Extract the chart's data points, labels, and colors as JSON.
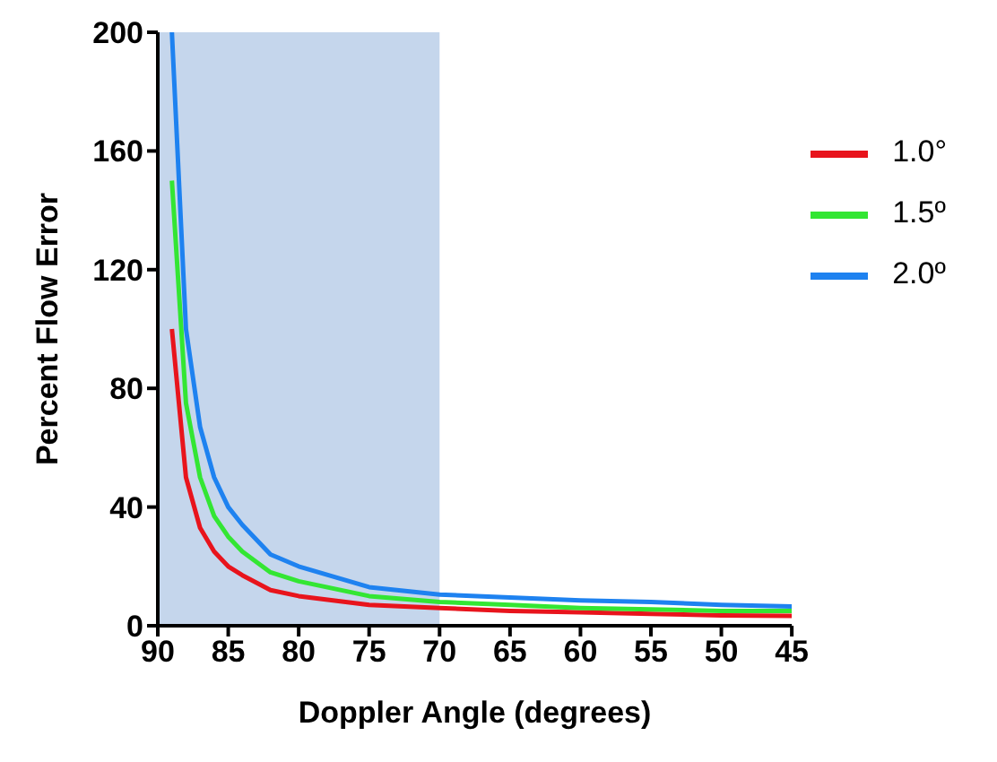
{
  "chart_data": {
    "type": "line",
    "xlabel": "Doppler Angle (degrees)",
    "ylabel": "Percent Flow Error",
    "x": [
      89,
      88,
      87,
      86,
      85,
      84,
      82,
      80,
      75,
      70,
      65,
      60,
      55,
      50,
      45
    ],
    "series": [
      {
        "name": "1.0°",
        "color": "#e8141c",
        "values": [
          100,
          50,
          33,
          25,
          20,
          17,
          12,
          10,
          7,
          6,
          5,
          4.5,
          4,
          3.5,
          3.3
        ]
      },
      {
        "name": "1.5º",
        "color": "#33e633",
        "values": [
          150,
          75,
          50,
          37,
          30,
          25,
          18,
          15,
          10,
          8,
          7,
          6,
          5.5,
          5,
          5
        ]
      },
      {
        "name": "2.0º",
        "color": "#1e82f0",
        "values": [
          200,
          100,
          67,
          50,
          40,
          34,
          24,
          20,
          13,
          10.5,
          9.5,
          8.5,
          8,
          7,
          6.5
        ]
      }
    ],
    "xlim": [
      90,
      45
    ],
    "xticks": [
      90,
      85,
      80,
      75,
      70,
      65,
      60,
      55,
      50,
      45
    ],
    "ylim": [
      0,
      200
    ],
    "yticks": [
      0,
      40,
      80,
      120,
      160,
      200
    ],
    "bands": [
      {
        "axis": "x",
        "from": 90,
        "to": 70,
        "color": "#c5d6ec"
      }
    ],
    "grid": false,
    "legend": "top right",
    "marker": "none",
    "line_style": "solid"
  }
}
